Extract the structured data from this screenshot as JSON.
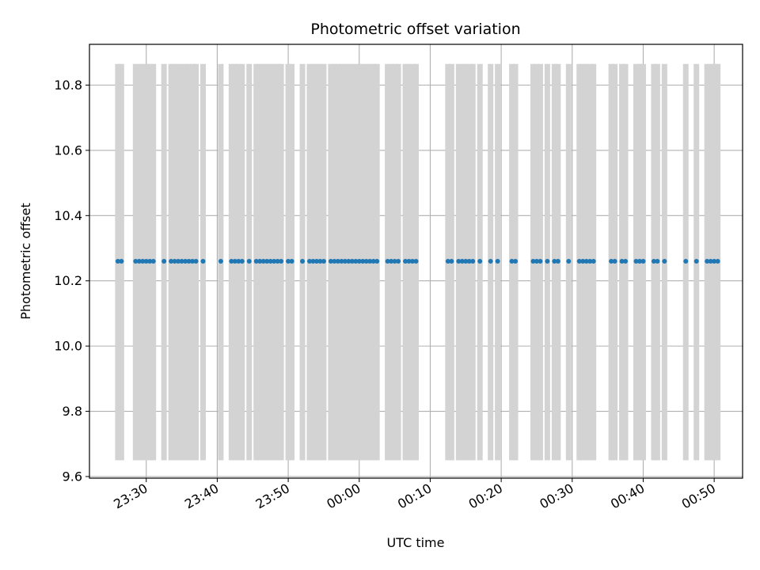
{
  "chart_data": {
    "type": "scatter",
    "title": "Photometric offset variation",
    "xlabel": "UTC time",
    "ylabel": "Photometric offset",
    "xlim": [
      "23:22",
      "00:54"
    ],
    "ylim": [
      9.595,
      10.925
    ],
    "xticks": [
      "23:30",
      "23:40",
      "23:50",
      "00:00",
      "00:10",
      "00:20",
      "00:30",
      "00:40",
      "00:50"
    ],
    "yticks": [
      9.6,
      9.8,
      10.0,
      10.2,
      10.4,
      10.6,
      10.8
    ],
    "grid": true,
    "series": [
      {
        "marker_color": "#1f77b4",
        "y_value": 10.26,
        "error_low": 9.65,
        "error_high": 10.865,
        "error_color": "#d3d3d3",
        "x": [
          "23:26",
          "23:26.5",
          "23:28.5",
          "23:29",
          "23:29.5",
          "23:30",
          "23:30.5",
          "23:31",
          "23:32.5",
          "23:33.5",
          "23:34",
          "23:34.5",
          "23:35",
          "23:35.5",
          "23:36",
          "23:36.5",
          "23:37",
          "23:38",
          "23:40.5",
          "23:42",
          "23:42.5",
          "23:43",
          "23:43.5",
          "23:44.5",
          "23:45.5",
          "23:46",
          "23:46.5",
          "23:47",
          "23:47.5",
          "23:48",
          "23:48.5",
          "23:49",
          "23:50",
          "23:50.5",
          "23:52",
          "23:53",
          "23:53.5",
          "23:54",
          "23:54.5",
          "23:55",
          "23:56",
          "23:56.5",
          "23:57",
          "23:57.5",
          "23:58",
          "23:58.5",
          "23:59",
          "23:59.5",
          "00:00",
          "00:00.5",
          "00:01",
          "00:01.5",
          "00:02",
          "00:02.5",
          "00:04",
          "00:04.5",
          "00:05",
          "00:05.5",
          "00:06.5",
          "00:07",
          "00:07.5",
          "00:08",
          "00:12.5",
          "00:13",
          "00:14",
          "00:14.5",
          "00:15",
          "00:15.5",
          "00:16",
          "00:17",
          "00:18.5",
          "00:19.5",
          "00:21.5",
          "00:22",
          "00:24.5",
          "00:25",
          "00:25.5",
          "00:26.5",
          "00:27.5",
          "00:28",
          "00:29.5",
          "00:31",
          "00:31.5",
          "00:32",
          "00:32.5",
          "00:33",
          "00:35.5",
          "00:36",
          "00:37",
          "00:37.5",
          "00:39",
          "00:39.5",
          "00:40",
          "00:41.5",
          "00:42",
          "00:43",
          "00:46",
          "00:47.5",
          "00:49",
          "00:49.5",
          "00:50",
          "00:50.5"
        ]
      }
    ]
  }
}
